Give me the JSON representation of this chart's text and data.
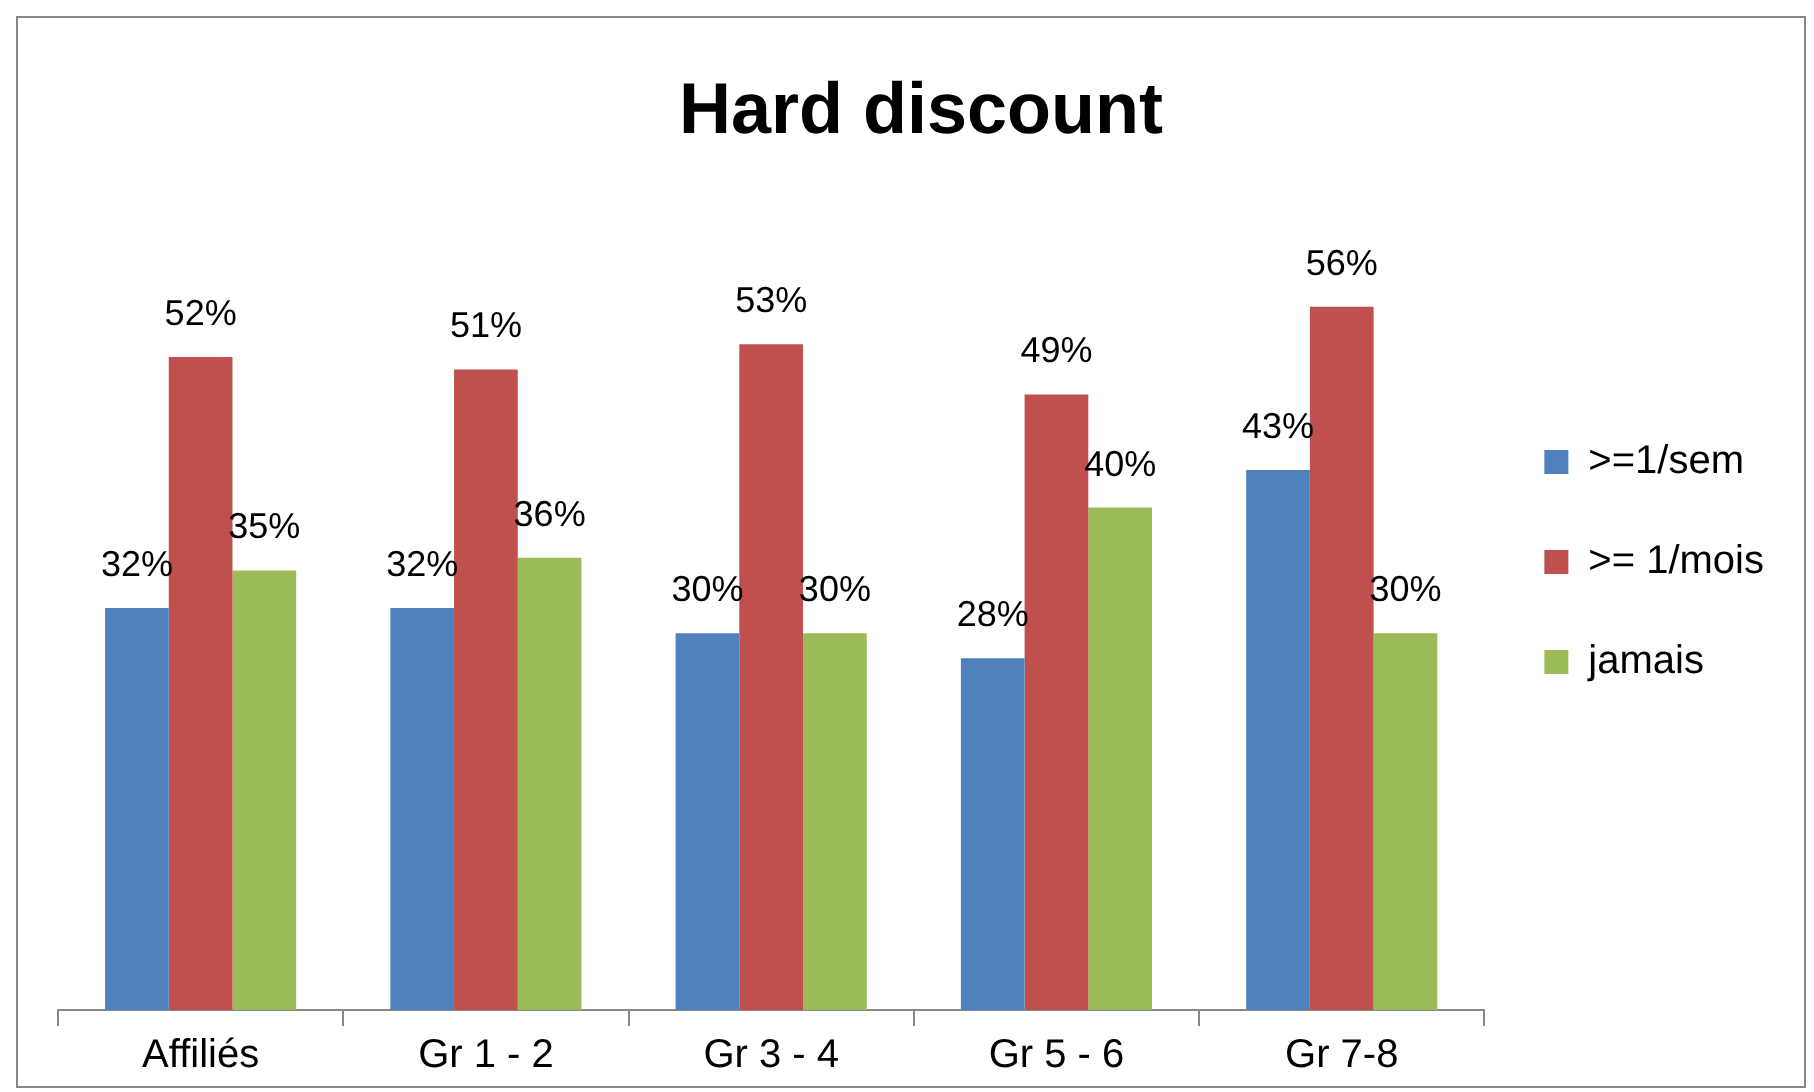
{
  "chart_data": {
    "type": "bar",
    "title": "Hard discount",
    "categories": [
      "Affiliés",
      "Gr 1 - 2",
      "Gr 3 - 4",
      "Gr 5 - 6",
      "Gr 7-8"
    ],
    "series": [
      {
        "name": ">=1/sem",
        "color": "#4f81bd",
        "values": [
          32,
          32,
          30,
          28,
          43
        ],
        "value_labels": [
          "32%",
          "32%",
          "30%",
          "28%",
          "43%"
        ]
      },
      {
        "name": ">= 1/mois",
        "color": "#c0504d",
        "values": [
          52,
          51,
          53,
          49,
          56
        ],
        "value_labels": [
          "52%",
          "51%",
          "53%",
          "49%",
          "56%"
        ]
      },
      {
        "name": "jamais",
        "color": "#9bbb59",
        "values": [
          35,
          36,
          30,
          40,
          30
        ],
        "value_labels": [
          "35%",
          "36%",
          "30%",
          "40%",
          "30%"
        ]
      }
    ],
    "grid": false,
    "legend": "right"
  }
}
